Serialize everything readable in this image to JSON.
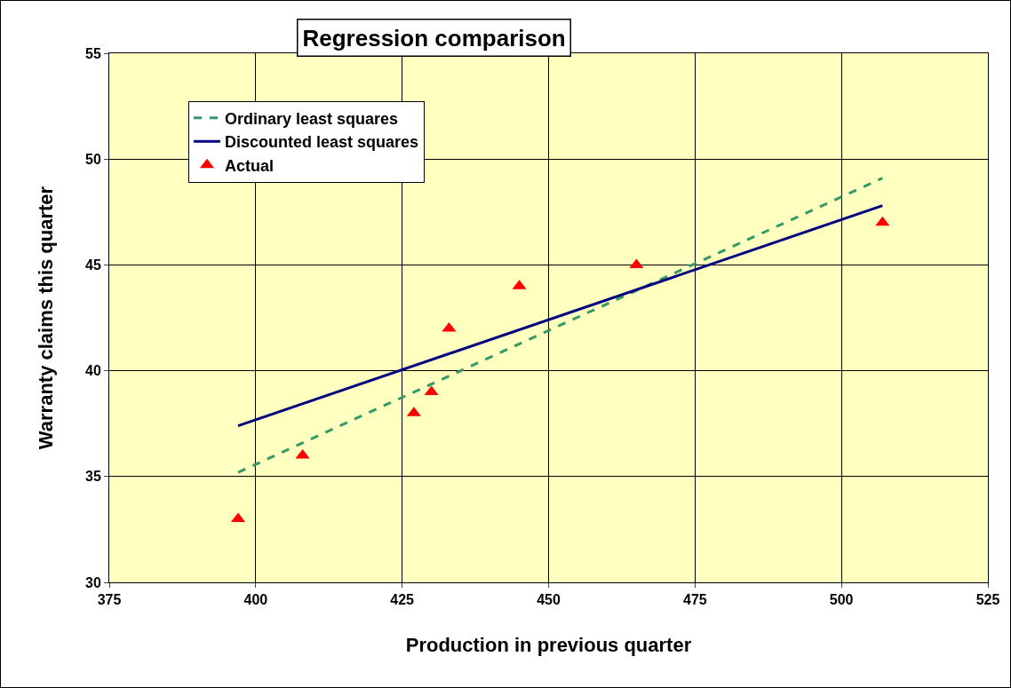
{
  "chart_data": {
    "type": "scatter",
    "title": "Regression comparison",
    "xlabel": "Production in previous quarter",
    "ylabel": "Warranty claims this quarter",
    "xlim": [
      375,
      525
    ],
    "xticks": [
      375,
      400,
      425,
      450,
      475,
      500,
      525
    ],
    "ylim": [
      30,
      55
    ],
    "yticks": [
      30,
      35,
      40,
      45,
      50,
      55
    ],
    "grid": true,
    "legend": "top left",
    "series": [
      {
        "name": "Ordinary least squares",
        "type": "line",
        "color": "#339966",
        "line_style": "dashed",
        "marker": "none",
        "x": [
          397,
          507
        ],
        "values": [
          35.2,
          49.1
        ]
      },
      {
        "name": "Discounted least squares",
        "type": "line",
        "color": "#000080",
        "line_style": "solid",
        "marker": "none",
        "x": [
          397,
          507
        ],
        "values": [
          37.4,
          47.8
        ]
      },
      {
        "name": "Actual",
        "type": "scatter",
        "color": "#ff0000",
        "marker": "triangle",
        "x": [
          397,
          408,
          427,
          430,
          433,
          445,
          465,
          507
        ],
        "values": [
          33,
          36,
          38,
          39,
          42,
          44,
          45,
          47
        ]
      }
    ]
  }
}
